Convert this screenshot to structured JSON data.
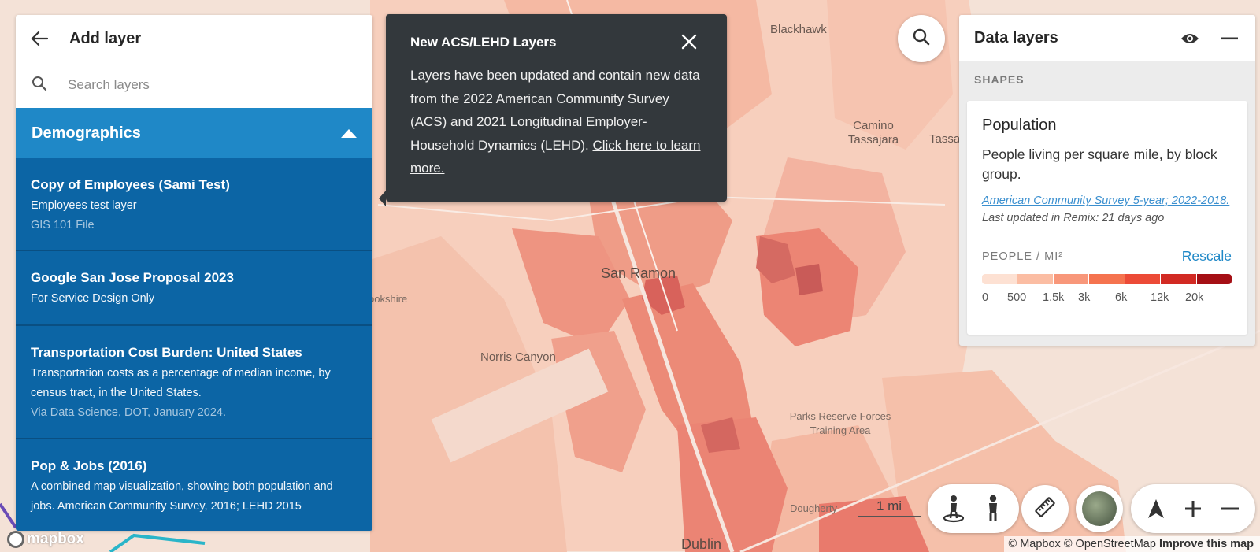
{
  "left_panel": {
    "title": "Add layer",
    "search_placeholder": "Search layers",
    "category": "Demographics",
    "layers": [
      {
        "title": "Copy of Employees (Sami Test)",
        "desc": "Employees test layer",
        "meta": "GIS 101 File"
      },
      {
        "title": "Google San Jose Proposal 2023",
        "desc": "For Service Design Only"
      },
      {
        "title": "Transportation Cost Burden: United States",
        "desc": "Transportation costs as a percentage of median income, by census tract, in the United States.",
        "meta_prefix": "Via Data Science, ",
        "meta_link": "DOT",
        "meta_suffix": ", January 2024."
      },
      {
        "title": "Pop & Jobs (2016)",
        "desc": "A combined map visualization, showing both population and jobs. American Community Survey, 2016; LEHD 2015"
      }
    ]
  },
  "tooltip": {
    "title": "New ACS/LEHD Layers",
    "body": "Layers have been updated and contain new data from the 2022 American Community Survey (ACS) and 2021 Longitudinal Employer-Household Dynamics (LEHD). ",
    "link": "Click here to learn more."
  },
  "right_panel": {
    "title": "Data layers",
    "section": "SHAPES",
    "card": {
      "title": "Population",
      "desc": "People living per square mile, by block group.",
      "source": "American Community Survey 5-year; 2022-2018.",
      "updated": "Last updated in Remix: 21 days ago",
      "unit": "PEOPLE / MI²",
      "rescale": "Rescale",
      "legend_colors": [
        "#fde1d3",
        "#fbbda3",
        "#f8977a",
        "#f5734f",
        "#ec4b37",
        "#d22a23",
        "#a50f15"
      ],
      "legend_ticks": [
        "0",
        "500",
        "1.5k",
        "3k",
        "6k",
        "12k",
        "20k"
      ]
    }
  },
  "map": {
    "labels": [
      "Blackhawk",
      "Camino Tassajara",
      "Tassaj",
      "San Ramon",
      "Norris Canyon",
      "ookshire",
      "Parks Reserve Forces Training Area",
      "Dougherty",
      "Dublin"
    ],
    "scale": "1 mi",
    "attribution_prefix": "© Mapbox © OpenStreetMap",
    "attribution_link": "Improve this map",
    "logo_text": "mapbox"
  }
}
